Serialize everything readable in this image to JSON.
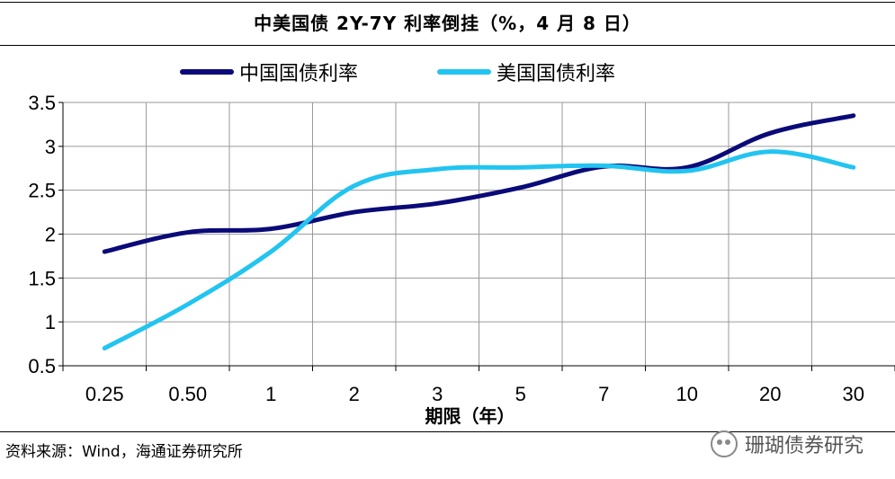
{
  "chart_data": {
    "type": "line",
    "title": "中美国债 2Y-7Y 利率倒挂（%，4 月 8 日）",
    "xlabel": "期限（年）",
    "ylabel": "",
    "categories": [
      "0.25",
      "0.50",
      "1",
      "2",
      "3",
      "5",
      "7",
      "10",
      "20",
      "30"
    ],
    "ylim": [
      0.5,
      3.5
    ],
    "yticks": [
      "0.5",
      "1",
      "1.5",
      "2",
      "2.5",
      "3",
      "3.5"
    ],
    "grid": true,
    "legend_position": "top",
    "series": [
      {
        "name": "中国国债利率",
        "color": "#0a0a78",
        "values": [
          1.8,
          2.02,
          2.06,
          2.25,
          2.35,
          2.53,
          2.77,
          2.76,
          3.15,
          3.35
        ]
      },
      {
        "name": "美国国债利率",
        "color": "#22c4f0",
        "values": [
          0.7,
          1.2,
          1.8,
          2.55,
          2.74,
          2.76,
          2.78,
          2.72,
          2.94,
          2.76
        ]
      }
    ]
  },
  "source": "资料来源：Wind，海通证券研究所",
  "watermark": "珊瑚债券研究",
  "watermark_icon": "wechat-icon"
}
